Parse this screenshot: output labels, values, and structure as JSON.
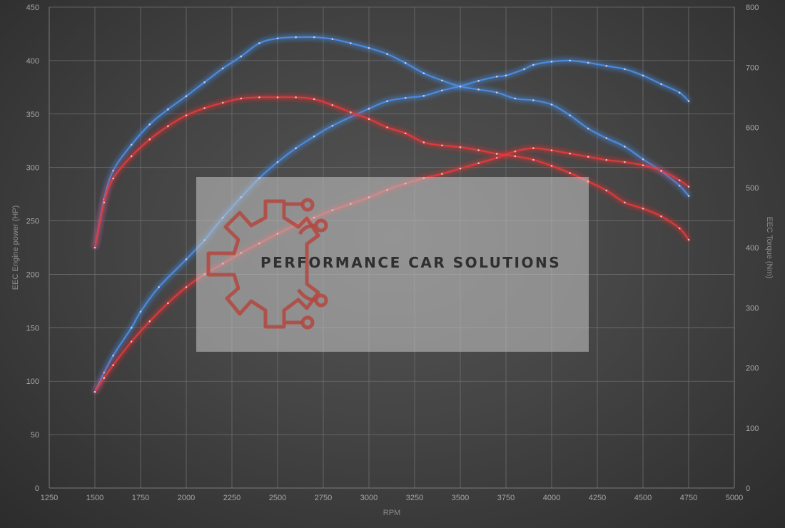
{
  "chart_data": {
    "type": "line",
    "title": "",
    "xlabel": "RPM",
    "ylabel": "EEC Engine power (HP)",
    "y2label": "EEC Torque (Nm)",
    "xlim": [
      1250,
      5000
    ],
    "ylim": [
      0,
      450
    ],
    "y2lim": [
      0,
      800
    ],
    "x_ticks": [
      1250,
      1500,
      1750,
      2000,
      2250,
      2500,
      2750,
      3000,
      3250,
      3500,
      3750,
      4000,
      4250,
      4500,
      4750,
      5000
    ],
    "y_ticks": [
      0,
      50,
      100,
      150,
      200,
      250,
      300,
      350,
      400,
      450
    ],
    "y2_ticks": [
      0,
      100,
      200,
      300,
      400,
      500,
      600,
      700,
      800
    ],
    "grid": true,
    "legend": "none",
    "series": [
      {
        "axis": "left",
        "color": "#4a8ee8",
        "x": [
          1500,
          1550,
          1600,
          1700,
          1750,
          1850,
          2000,
          2100,
          2200,
          2300,
          2400,
          2500,
          2600,
          2700,
          2800,
          3000,
          3100,
          3200,
          3300,
          3400,
          3500,
          3600,
          3700,
          3750,
          3850,
          3900,
          4000,
          4100,
          4200,
          4300,
          4400,
          4500,
          4600,
          4700,
          4750
        ],
        "y": [
          90,
          108,
          124,
          150,
          165,
          188,
          214,
          232,
          253,
          272,
          290,
          305,
          318,
          329,
          339,
          355,
          362,
          365,
          367,
          372,
          376,
          381,
          385,
          386,
          392,
          396,
          399,
          400,
          398,
          395,
          392,
          386,
          378,
          370,
          362
        ]
      },
      {
        "axis": "right",
        "color": "#4a8ee8",
        "x": [
          1500,
          1550,
          1600,
          1700,
          1800,
          1900,
          2000,
          2100,
          2200,
          2300,
          2400,
          2500,
          2600,
          2700,
          2800,
          2900,
          3000,
          3100,
          3200,
          3300,
          3400,
          3500,
          3600,
          3700,
          3800,
          3900,
          4000,
          4100,
          4200,
          4300,
          4400,
          4500,
          4600,
          4700,
          4750
        ],
        "y": [
          400,
          480,
          528,
          571,
          605,
          630,
          652,
          675,
          698,
          718,
          740,
          748,
          750,
          750,
          747,
          740,
          732,
          722,
          707,
          690,
          678,
          668,
          663,
          658,
          648,
          645,
          638,
          620,
          598,
          582,
          568,
          547,
          527,
          503,
          486
        ]
      },
      {
        "axis": "left",
        "color": "#e5393b",
        "x": [
          1500,
          1550,
          1600,
          1700,
          1800,
          1900,
          2000,
          2100,
          2200,
          2300,
          2400,
          2500,
          2600,
          2700,
          2800,
          2900,
          3000,
          3100,
          3200,
          3300,
          3400,
          3500,
          3600,
          3700,
          3800,
          3900,
          4000,
          4100,
          4200,
          4300,
          4400,
          4500,
          4600,
          4700,
          4750
        ],
        "y": [
          90,
          103,
          115,
          137,
          156,
          173,
          188,
          200,
          210,
          220,
          229,
          238,
          246,
          253,
          260,
          266,
          272,
          279,
          285,
          290,
          294,
          299,
          304,
          309,
          315,
          318,
          316,
          313,
          310,
          307,
          305,
          302,
          297,
          288,
          282
        ]
      },
      {
        "axis": "right",
        "color": "#e5393b",
        "x": [
          1500,
          1550,
          1600,
          1700,
          1800,
          1900,
          2000,
          2100,
          2200,
          2300,
          2400,
          2500,
          2600,
          2700,
          2800,
          2900,
          3000,
          3100,
          3200,
          3300,
          3400,
          3500,
          3600,
          3700,
          3800,
          3900,
          4000,
          4100,
          4200,
          4300,
          4400,
          4500,
          4600,
          4700,
          4750
        ],
        "y": [
          400,
          475,
          515,
          552,
          580,
          602,
          620,
          632,
          641,
          648,
          650,
          650,
          650,
          647,
          637,
          625,
          614,
          600,
          590,
          575,
          570,
          567,
          562,
          556,
          552,
          546,
          536,
          524,
          510,
          495,
          475,
          465,
          452,
          432,
          413
        ]
      }
    ]
  },
  "watermark": {
    "text": "PERFORMANCE CAR SOLUTIONS",
    "logo_icon": "gear-circuit-logo-icon"
  }
}
